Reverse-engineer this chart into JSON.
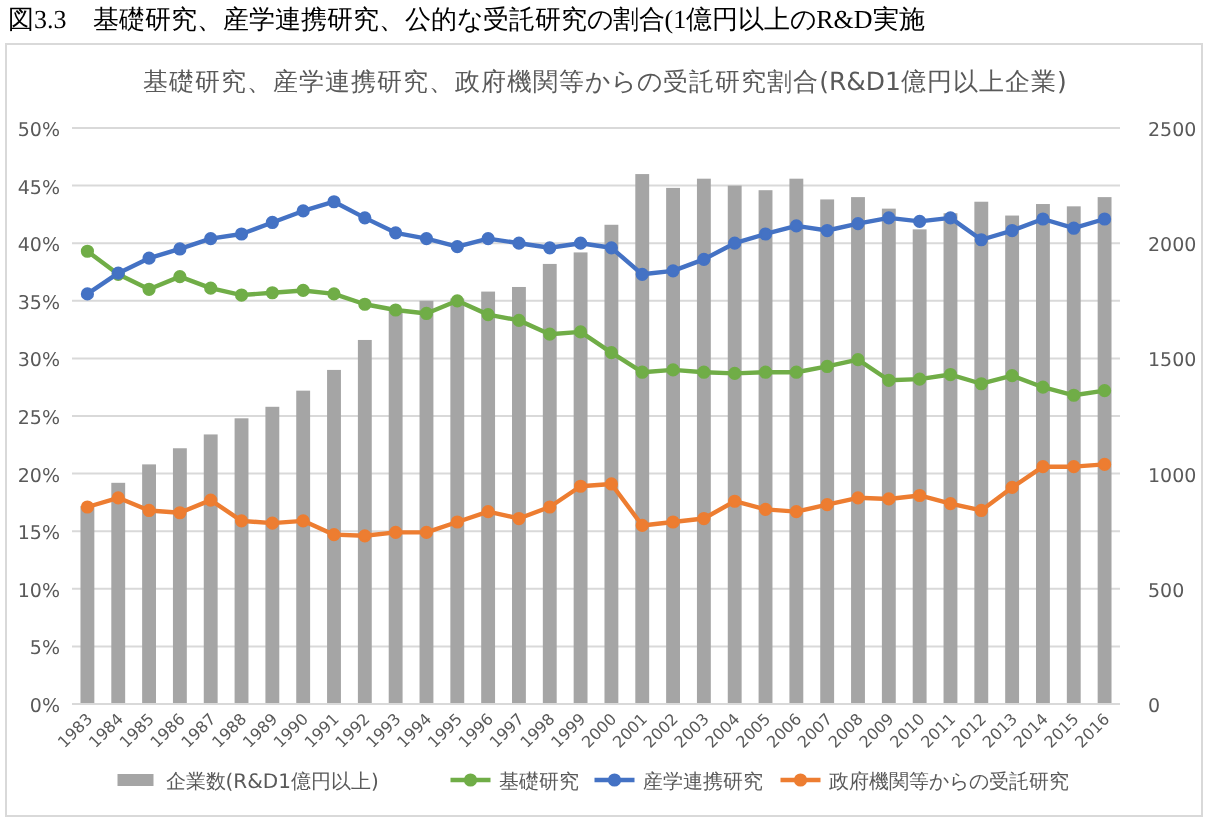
{
  "chart_data": {
    "type": "bar",
    "title": "基礎研究、産学連携研究、政府機関等からの受託研究割合(R&D1億円以上企業)",
    "annotations": [
      "図3.3　基礎研究、産学連携研究、公的な受託研究の割合(1億円以上のR&D実施"
    ],
    "categories": [
      "1983",
      "1984",
      "1985",
      "1986",
      "1987",
      "1988",
      "1989",
      "1990",
      "1991",
      "1992",
      "1993",
      "1994",
      "1995",
      "1996",
      "1997",
      "1998",
      "1999",
      "2000",
      "2001",
      "2002",
      "2003",
      "2004",
      "2005",
      "2006",
      "2007",
      "2008",
      "2009",
      "2010",
      "2011",
      "2012",
      "2013",
      "2014",
      "2015",
      "2016"
    ],
    "series": [
      {
        "name": "企業数(R&D1億円以上)",
        "axis": "y2",
        "color": "#a5a5a5",
        "values": [
          860,
          960,
          1040,
          1110,
          1170,
          1240,
          1290,
          1360,
          1450,
          1580,
          1710,
          1750,
          1760,
          1790,
          1810,
          1910,
          1960,
          2080,
          2300,
          2240,
          2280,
          2250,
          2230,
          2280,
          2190,
          2200,
          2150,
          2060,
          2130,
          2180,
          2120,
          2170,
          2160,
          2200
        ]
      },
      {
        "name": "基礎研究",
        "type": "line",
        "color": "#70ad47",
        "values": [
          39.3,
          37.3,
          36.0,
          37.1,
          36.1,
          35.5,
          35.7,
          35.9,
          35.6,
          34.7,
          34.2,
          33.9,
          35.0,
          33.8,
          33.3,
          32.1,
          32.3,
          30.5,
          28.8,
          29.0,
          28.8,
          28.7,
          28.8,
          28.8,
          29.3,
          29.9,
          28.1,
          28.2,
          28.6,
          27.8,
          28.5,
          27.5,
          26.8,
          27.2
        ]
      },
      {
        "name": "産学連携研究",
        "type": "line",
        "color": "#4472c4",
        "values": [
          35.6,
          37.4,
          38.7,
          39.5,
          40.4,
          40.8,
          41.8,
          42.8,
          43.6,
          42.2,
          40.9,
          40.4,
          39.7,
          40.4,
          40.0,
          39.6,
          40.0,
          39.6,
          37.3,
          37.6,
          38.6,
          40.0,
          40.8,
          41.5,
          41.1,
          41.7,
          42.2,
          41.9,
          42.2,
          40.3,
          41.1,
          42.1,
          41.3,
          42.1
        ]
      },
      {
        "name": "政府機関等からの受託研究",
        "type": "line",
        "color": "#ed7d31",
        "values": [
          17.1,
          17.9,
          16.8,
          16.6,
          17.7,
          15.9,
          15.7,
          15.9,
          14.7,
          14.6,
          14.9,
          14.9,
          15.8,
          16.7,
          16.1,
          17.1,
          18.9,
          19.1,
          15.5,
          15.8,
          16.1,
          17.6,
          16.9,
          16.7,
          17.3,
          17.9,
          17.8,
          18.1,
          17.4,
          16.8,
          18.8,
          20.6,
          20.6,
          20.8
        ]
      }
    ],
    "ylim": [
      0,
      50
    ],
    "yticks": [
      {
        "value": 0,
        "label": "0%"
      },
      {
        "value": 5,
        "label": "5%"
      },
      {
        "value": 10,
        "label": "10%"
      },
      {
        "value": 15,
        "label": "15%"
      },
      {
        "value": 20,
        "label": "20%"
      },
      {
        "value": 25,
        "label": "25%"
      },
      {
        "value": 30,
        "label": "30%"
      },
      {
        "value": 35,
        "label": "35%"
      },
      {
        "value": 40,
        "label": "40%"
      },
      {
        "value": 45,
        "label": "45%"
      },
      {
        "value": 50,
        "label": "50%"
      }
    ],
    "y2lim": [
      0,
      2500
    ],
    "y2ticks": [
      0,
      500,
      1000,
      1500,
      2000,
      2500
    ],
    "grid": "y",
    "legend": "bottom",
    "marker": "circle",
    "line_style": "solid"
  }
}
